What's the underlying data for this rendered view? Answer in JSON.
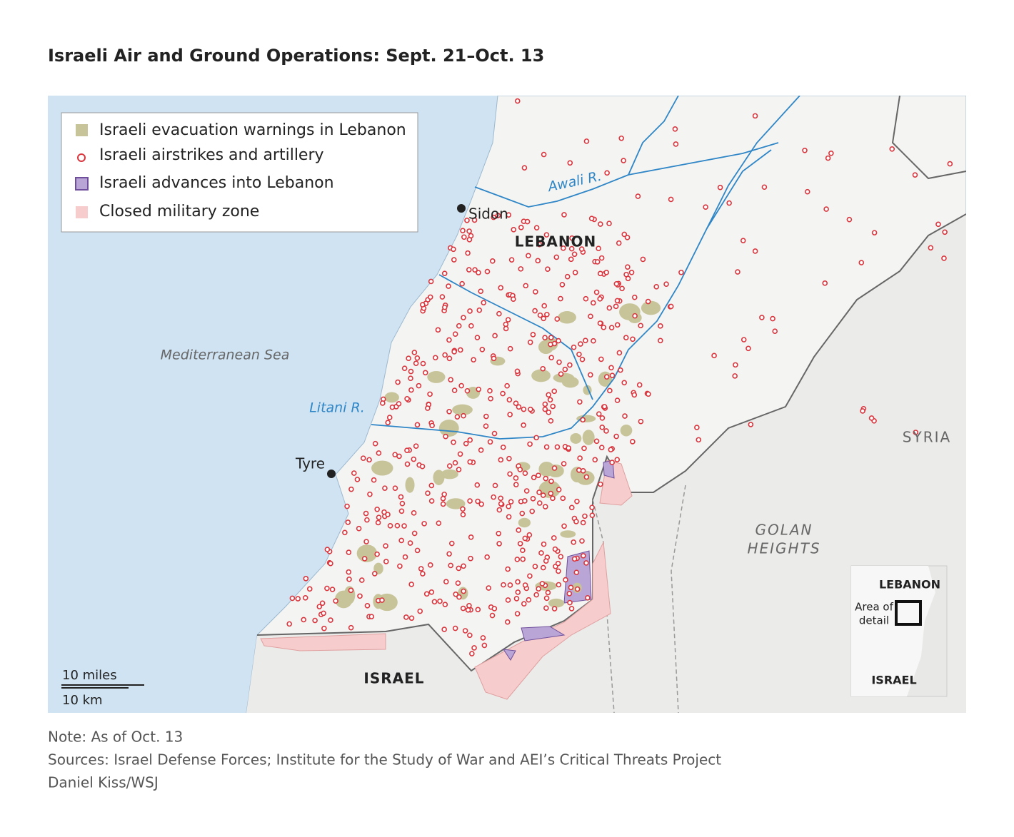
{
  "title": "Israeli Air and Ground Operations: Sept. 21–Oct. 13",
  "legend": [
    "Israeli evacuation warnings in Lebanon",
    "Israeli airstrikes and artillery",
    "Israeli advances into Lebanon",
    "Closed military zone"
  ],
  "labels": {
    "sidon": "Sidon",
    "lebanon": "LEBANON",
    "awali": "Awali R.",
    "sea": "Mediterranean Sea",
    "litani": "Litani R.",
    "tyre": "Tyre",
    "syria": "SYRIA",
    "golan": [
      "GOLAN",
      "HEIGHTS"
    ],
    "israel": "ISRAEL"
  },
  "scale": {
    "miles": "10 miles",
    "km": "10 km"
  },
  "inset": {
    "lebanon": "LEBANON",
    "area": [
      "Area of",
      "detail"
    ],
    "israel": "ISRAEL"
  },
  "footer": [
    "Note: As of Oct. 13",
    "Sources: Israel Defense Forces; Institute for the Study of War and AEI’s Critical Threats Project",
    "Daniel Kiss/WSJ"
  ]
}
